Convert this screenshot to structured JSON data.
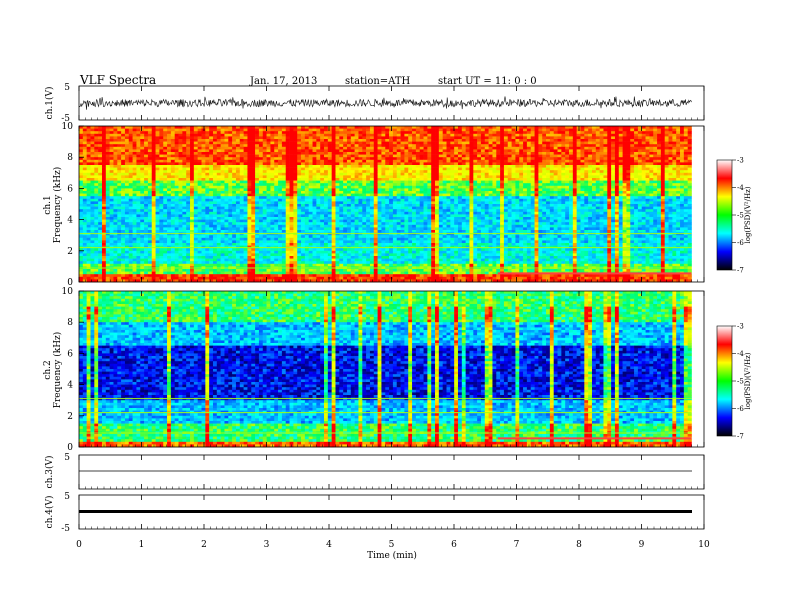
{
  "header": {
    "title": "VLF  Spectra",
    "date": "Jan. 17, 2013",
    "station": "station=ATH",
    "start": "start  UT =   11: 0  : 0"
  },
  "colors": {
    "spectrum": [
      "#000066",
      "#0000ff",
      "#00a0ff",
      "#00ffff",
      "#00ff60",
      "#c8ff00",
      "#ffff00",
      "#ff8000",
      "#ff0000"
    ],
    "colorbar": [
      "#000000",
      "#0000ff",
      "#00ffff",
      "#00ff00",
      "#ffff00",
      "#ff0000",
      "#ffffff"
    ],
    "ch1_marker": "#ff4040",
    "ch2_marker": "#ff4040"
  },
  "chart_data": [
    {
      "type": "line",
      "panel": "ch1-waveform",
      "ylabel": "ch.1(V)",
      "yticks": [
        "5",
        "-5"
      ],
      "xlim": [
        0,
        10
      ],
      "ylim": [
        -5,
        5
      ],
      "trace_extent_min": 9.8,
      "description_values": {
        "mean": 0,
        "amplitude_range": [
          -2,
          2
        ]
      }
    },
    {
      "type": "heatmap",
      "panel": "ch1-spectrogram",
      "ylabel_top": "ch.1",
      "ylabel": "Frequency  (kHz)",
      "yticks": [
        "10",
        "8",
        "6",
        "4",
        "2",
        "0"
      ],
      "xlim": [
        0,
        10
      ],
      "ylim": [
        0,
        10
      ],
      "data_extent_min": 9.8,
      "band_levels": [
        {
          "f": [
            0,
            0.5
          ],
          "level": 0.95
        },
        {
          "f": [
            0.5,
            1.2
          ],
          "level": 0.55
        },
        {
          "f": [
            1.2,
            2.5
          ],
          "level": 0.38
        },
        {
          "f": [
            2.5,
            5.5
          ],
          "level": 0.33
        },
        {
          "f": [
            5.5,
            6.5
          ],
          "level": 0.55
        },
        {
          "f": [
            6.5,
            7.5
          ],
          "level": 0.75
        },
        {
          "f": [
            7.5,
            10
          ],
          "level": 0.92
        }
      ],
      "colorbar": {
        "label": "log(PSD)(V²/Hz)",
        "ticks": [
          "-3",
          "-4",
          "-5",
          "-6",
          "-7"
        ],
        "range": [
          -7,
          -3
        ]
      }
    },
    {
      "type": "heatmap",
      "panel": "ch2-spectrogram",
      "ylabel_top": "ch.2",
      "ylabel": "Frequency  (kHz)",
      "yticks": [
        "10",
        "8",
        "6",
        "4",
        "2",
        "0"
      ],
      "xlim": [
        0,
        10
      ],
      "ylim": [
        0,
        10
      ],
      "data_extent_min": 9.8,
      "band_levels": [
        {
          "f": [
            0,
            0.3
          ],
          "level": 0.9
        },
        {
          "f": [
            0.3,
            1.5
          ],
          "level": 0.5
        },
        {
          "f": [
            1.5,
            3
          ],
          "level": 0.3
        },
        {
          "f": [
            3,
            6.5
          ],
          "level": 0.12
        },
        {
          "f": [
            6.5,
            8
          ],
          "level": 0.3
        },
        {
          "f": [
            8,
            10
          ],
          "level": 0.5
        }
      ],
      "colorbar": {
        "label": "log(PSD)(V²/Hz)",
        "ticks": [
          "-3",
          "-4",
          "-5",
          "-6",
          "-7"
        ],
        "range": [
          -7,
          -3
        ]
      }
    },
    {
      "type": "line",
      "panel": "ch3-waveform",
      "ylabel": "ch.3(V)",
      "yticks": [
        "5"
      ],
      "xlim": [
        0,
        10
      ],
      "ylim": [
        -5,
        5
      ],
      "trace_level": 0
    },
    {
      "type": "line",
      "panel": "ch4-waveform",
      "ylabel": "ch.4(V)",
      "yticks": [
        "5",
        "-5"
      ],
      "xlim": [
        0,
        10
      ],
      "ylim": [
        -5,
        5
      ],
      "trace_level": 0,
      "xlabel": "Time  (min)",
      "xticks": [
        "0",
        "1",
        "2",
        "3",
        "4",
        "5",
        "6",
        "7",
        "8",
        "9",
        "10"
      ]
    }
  ]
}
